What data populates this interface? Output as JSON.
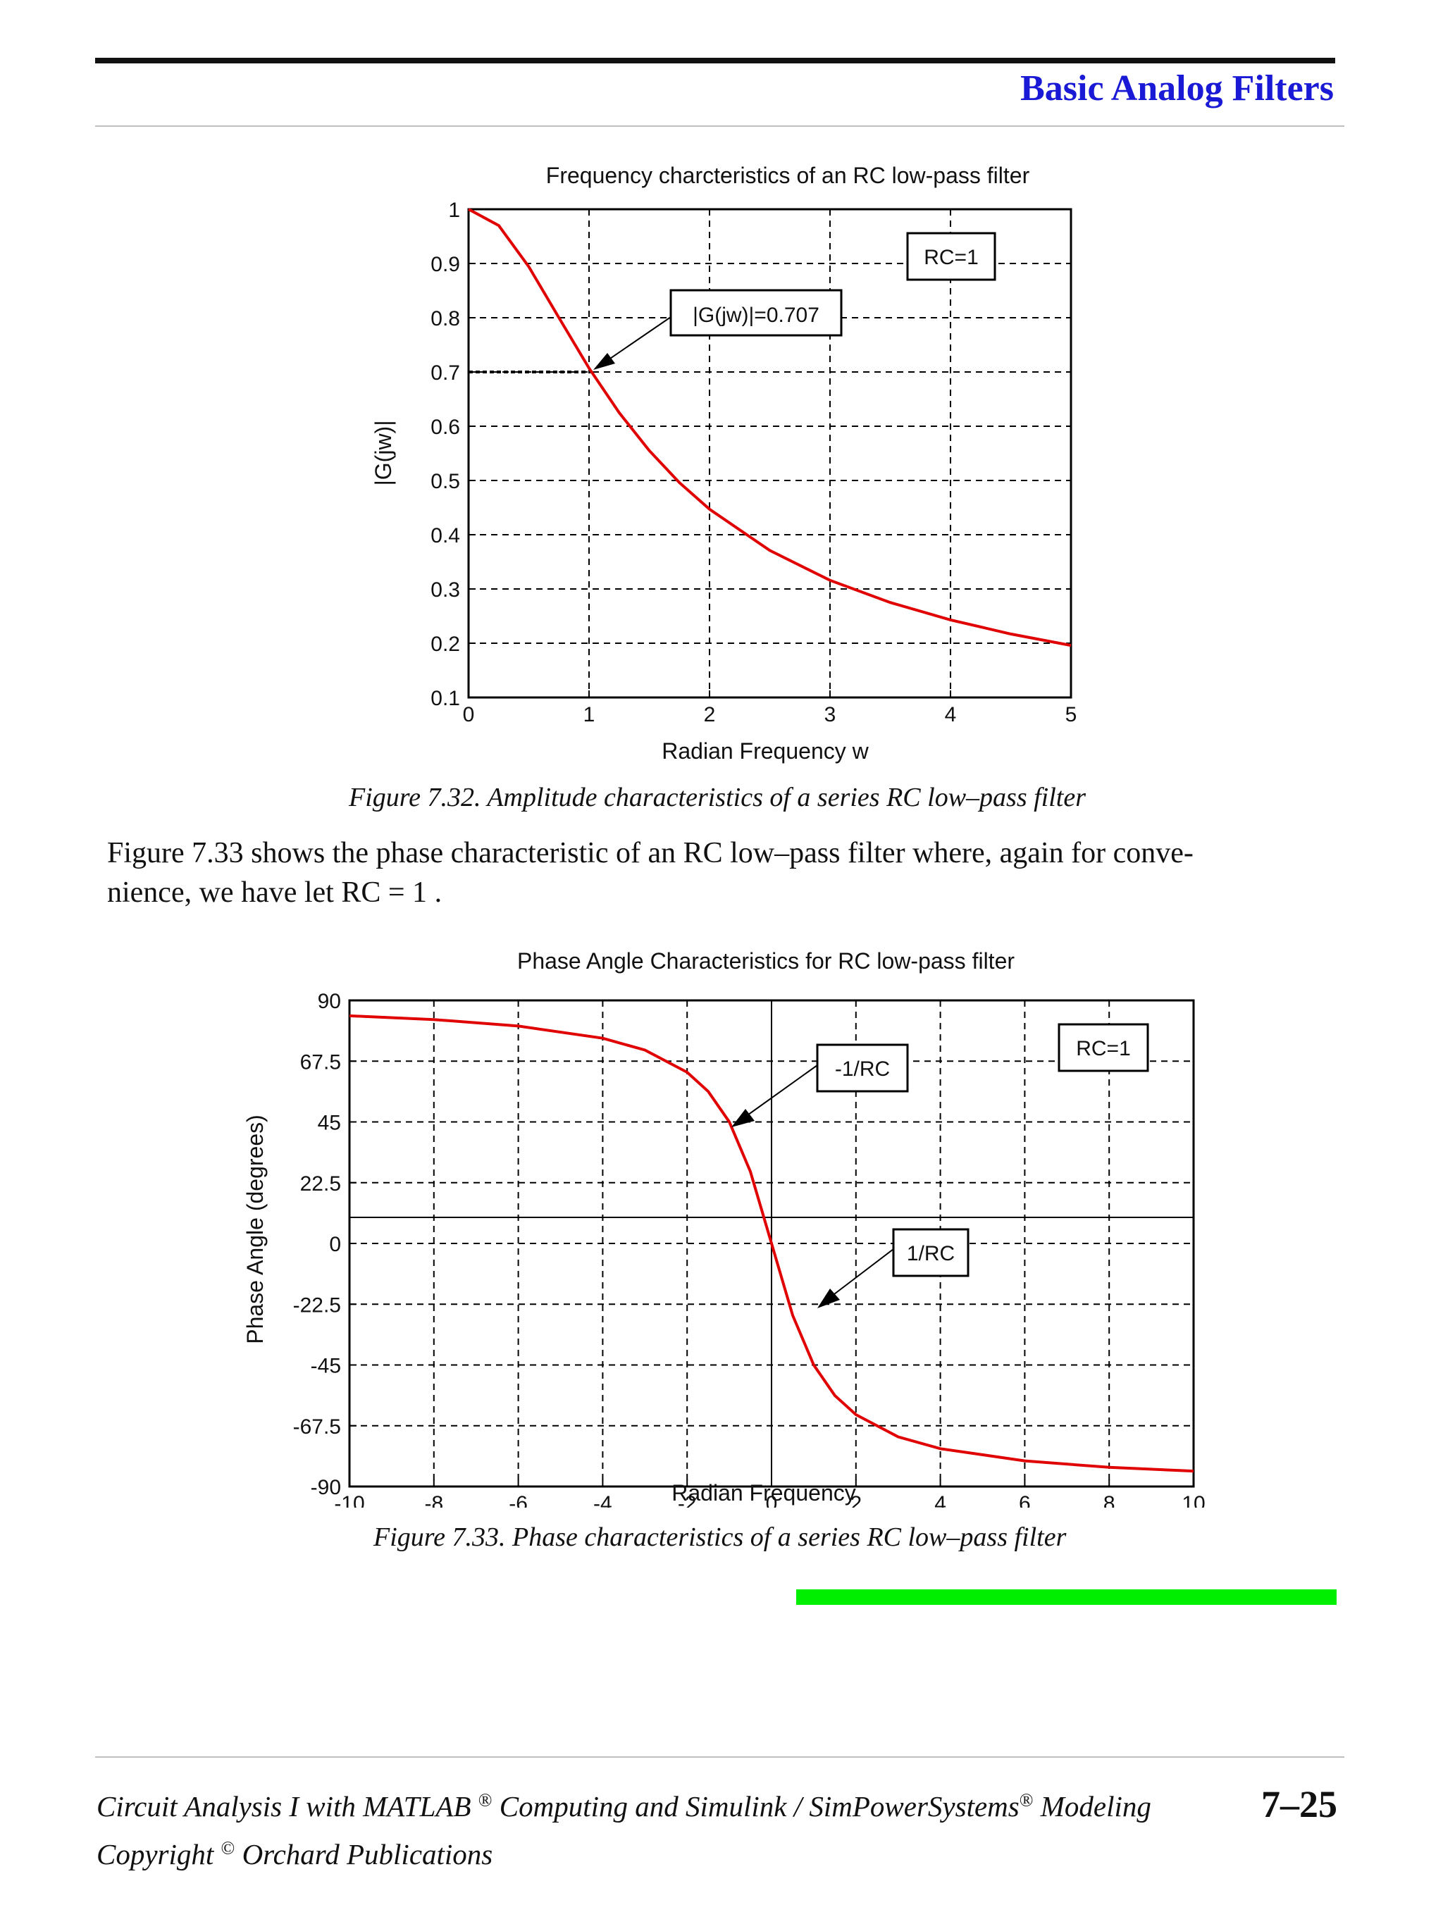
{
  "header": {
    "title": "Basic Analog Filters"
  },
  "figure1": {
    "caption": "Figure 7.32.  Amplitude characteristics of a series RC low–pass filter"
  },
  "paragraph": {
    "part1": "Figure 7.33 shows the phase characteristic of an RC low–pass filter where, again for conve-",
    "part2": "nience, we have let ",
    "eq": "RC = 1",
    "part3": " ."
  },
  "figure2": {
    "caption": "Figure 7.33.  Phase characteristics of a series RC low–pass filter"
  },
  "footer": {
    "book_a": "Circuit Analysis I with MATLAB",
    "reg1": "®",
    "book_b": " Computing and Simulink / SimPowerSystems",
    "reg2": "®",
    "book_c": " Modeling",
    "copyright_a": "Copyright ",
    "copyright_sym": "©",
    "copyright_b": "  Orchard Publications",
    "page_number": "7–25"
  },
  "colors": {
    "curve": "#e00000",
    "header": "#1a1ad6",
    "accent_bar": "#00ee00"
  },
  "chart_data": [
    {
      "type": "line",
      "title": "Frequency charcteristics of an RC low-pass filter",
      "xlabel": "Radian Frequency w",
      "ylabel": "|G(jw)|",
      "xlim": [
        0,
        5
      ],
      "ylim": [
        0.1,
        1
      ],
      "xticks": [
        "0",
        "1",
        "2",
        "3",
        "4",
        "5"
      ],
      "yticks": [
        "0.1",
        "0.2",
        "0.3",
        "0.4",
        "0.5",
        "0.6",
        "0.7",
        "0.8",
        "0.9",
        "1"
      ],
      "grid": true,
      "series": [
        {
          "x": [
            0,
            0.25,
            0.5,
            0.75,
            1,
            1.25,
            1.5,
            1.75,
            2,
            2.5,
            3,
            3.5,
            4,
            4.5,
            5
          ],
          "y": [
            1,
            0.97,
            0.894,
            0.8,
            0.707,
            0.625,
            0.555,
            0.496,
            0.447,
            0.371,
            0.316,
            0.275,
            0.243,
            0.217,
            0.196
          ]
        }
      ],
      "annotations": [
        "|G(jw)|=0.707",
        "RC=1"
      ]
    },
    {
      "type": "line",
      "title": "Phase Angle Characteristics for RC low-pass filter",
      "xlabel": "Radian Frequency",
      "ylabel": "Phase Angle (degrees)",
      "xlim": [
        -10,
        10
      ],
      "ylim": [
        -90,
        90
      ],
      "xticks": [
        "-10",
        "-8",
        "-6",
        "-4",
        "-2",
        "0",
        "2",
        "4",
        "6",
        "8",
        "10"
      ],
      "yticks": [
        "90",
        "67.5",
        "45",
        "22.5",
        "0",
        "-22.5",
        "-45",
        "-67.5",
        "-90"
      ],
      "grid": true,
      "series": [
        {
          "x": [
            -10,
            -8,
            -6,
            -4,
            -3,
            -2,
            -1.5,
            -1,
            -0.5,
            0,
            0.5,
            1,
            1.5,
            2,
            3,
            4,
            6,
            8,
            10
          ],
          "y": [
            84.3,
            82.9,
            80.5,
            76,
            71.6,
            63.4,
            56.3,
            45,
            26.6,
            0,
            -26.6,
            -45,
            -56.3,
            -63.4,
            -71.6,
            -76,
            -80.5,
            -82.9,
            -84.3
          ]
        }
      ],
      "annotations": [
        "-1/RC",
        "1/RC",
        "RC=1"
      ]
    }
  ]
}
